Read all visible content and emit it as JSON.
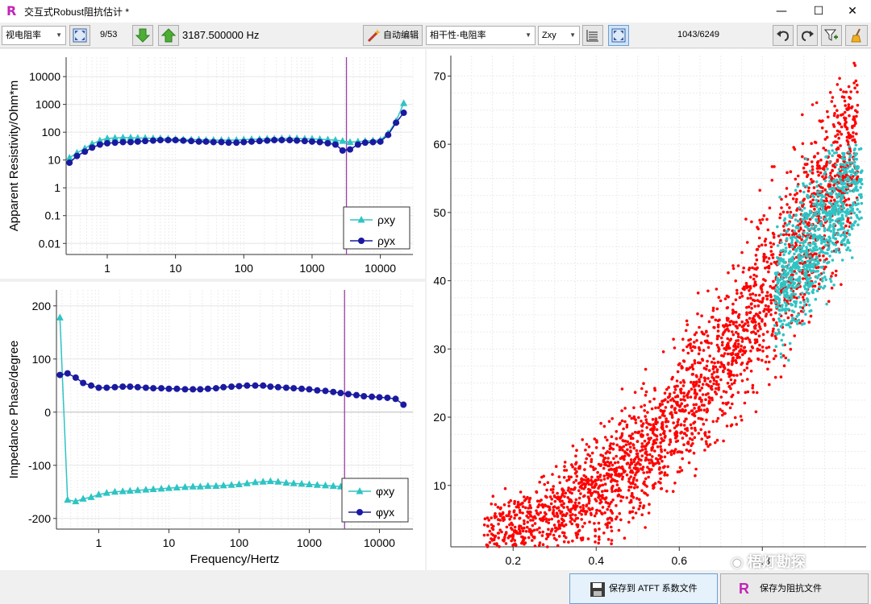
{
  "window": {
    "title": "交互式Robust阻抗估计 *",
    "app_icon": "R",
    "minimize": "—",
    "maximize": "☐",
    "close": "✕"
  },
  "toolbar": {
    "view_combo": "视电阻率",
    "page": "9/53",
    "frequency": "3187.500000 Hz",
    "auto_edit": "自动编辑",
    "coherence_combo": "相干性-电阻率",
    "component_combo": "Zxy",
    "count": "1043/6249"
  },
  "resistivity_plot": {
    "ylabel": "Apparent Resistivity/Ohm*m",
    "yticks": [
      "10000",
      "1000",
      "100",
      "10",
      "1",
      "0.1",
      "0.01"
    ],
    "xticks": [
      "1",
      "10",
      "100",
      "1000",
      "10000"
    ],
    "legend": [
      "ρxy",
      "ρyx"
    ],
    "marker_frequency": 3187.5
  },
  "phase_plot": {
    "ylabel": "Impedance Phase/degree",
    "xlabel": "Frequency/Hertz",
    "yticks": [
      "200",
      "100",
      "0",
      "-100",
      "-200"
    ],
    "xticks": [
      "1",
      "10",
      "100",
      "1000",
      "10000"
    ],
    "legend": [
      "φxy",
      "φyx"
    ],
    "marker_frequency": 3187.5
  },
  "scatter_plot": {
    "xticks": [
      "0.2",
      "0.4",
      "0.6",
      "0.8"
    ],
    "yticks": [
      "70",
      "60",
      "50",
      "40",
      "30",
      "20",
      "10"
    ]
  },
  "footer": {
    "save_atft": "保存到 ATFT 系数文件",
    "save_impedance": "保存为阻抗文件",
    "watermark": "梧灯勘探"
  },
  "colors": {
    "xy": "#2ec4c4",
    "yx": "#1a1aa0",
    "scatter_red": "#ff0000",
    "scatter_cyan": "#2ec4c4",
    "marker_line": "#9b3fa8"
  },
  "chart_data": [
    {
      "type": "line",
      "title": "",
      "ylabel": "Apparent Resistivity/Ohm*m",
      "xscale": "log",
      "yscale": "log",
      "xlim": [
        0.25,
        30000
      ],
      "ylim": [
        0.004,
        50000
      ],
      "grid": true,
      "legend": "bottom-right",
      "series": [
        {
          "name": "ρxy",
          "marker": "triangle",
          "x": [
            0.28,
            0.36,
            0.47,
            0.6,
            0.78,
            1.0,
            1.3,
            1.7,
            2.2,
            2.8,
            3.6,
            4.7,
            6,
            7.8,
            10,
            13,
            17,
            22,
            28,
            36,
            47,
            60,
            78,
            100,
            130,
            170,
            220,
            280,
            360,
            470,
            600,
            780,
            1000,
            1300,
            1700,
            2200,
            2800,
            3600,
            4700,
            6000,
            7800,
            10000,
            13000,
            17000,
            22000
          ],
          "y": [
            12,
            18,
            26,
            38,
            50,
            60,
            62,
            64,
            64,
            62,
            62,
            60,
            60,
            58,
            56,
            54,
            54,
            54,
            52,
            52,
            52,
            52,
            52,
            54,
            56,
            56,
            58,
            58,
            60,
            60,
            60,
            58,
            58,
            56,
            54,
            52,
            48,
            44,
            46,
            48,
            50,
            52,
            90,
            250,
            1100
          ]
        },
        {
          "name": "ρyx",
          "marker": "circle",
          "x": [
            0.28,
            0.36,
            0.47,
            0.6,
            0.78,
            1.0,
            1.3,
            1.7,
            2.2,
            2.8,
            3.6,
            4.7,
            6,
            7.8,
            10,
            13,
            17,
            22,
            28,
            36,
            47,
            60,
            78,
            100,
            130,
            170,
            220,
            280,
            360,
            470,
            600,
            780,
            1000,
            1300,
            1700,
            2200,
            2800,
            3600,
            4700,
            6000,
            7800,
            10000,
            13000,
            17000,
            22000
          ],
          "y": [
            8,
            14,
            20,
            28,
            36,
            40,
            42,
            44,
            44,
            46,
            48,
            50,
            52,
            52,
            52,
            50,
            48,
            46,
            46,
            44,
            44,
            42,
            42,
            44,
            46,
            48,
            50,
            52,
            52,
            52,
            50,
            48,
            46,
            44,
            40,
            36,
            22,
            24,
            36,
            42,
            44,
            46,
            80,
            220,
            500
          ]
        }
      ]
    },
    {
      "type": "line",
      "title": "",
      "xlabel": "Frequency/Hertz",
      "ylabel": "Impedance Phase/degree",
      "xscale": "log",
      "xlim": [
        0.25,
        30000
      ],
      "ylim": [
        -220,
        230
      ],
      "grid": true,
      "legend": "bottom-right",
      "series": [
        {
          "name": "φxy",
          "marker": "triangle",
          "x": [
            0.28,
            0.36,
            0.47,
            0.6,
            0.78,
            1.0,
            1.3,
            1.7,
            2.2,
            2.8,
            3.6,
            4.7,
            6,
            7.8,
            10,
            13,
            17,
            22,
            28,
            36,
            47,
            60,
            78,
            100,
            130,
            170,
            220,
            280,
            360,
            470,
            600,
            780,
            1000,
            1300,
            1700,
            2200,
            2800,
            3600,
            4700,
            6000,
            7800,
            10000,
            13000,
            17000,
            22000
          ],
          "y": [
            178,
            -165,
            -168,
            -163,
            -160,
            -155,
            -152,
            -150,
            -149,
            -148,
            -147,
            -146,
            -145,
            -144,
            -143,
            -142,
            -141,
            -140,
            -140,
            -139,
            -139,
            -138,
            -137,
            -136,
            -134,
            -132,
            -131,
            -130,
            -131,
            -133,
            -134,
            -135,
            -136,
            -137,
            -138,
            -139,
            -140,
            -141,
            -142,
            -143,
            -143,
            -144,
            -146,
            -150,
            -158
          ]
        },
        {
          "name": "φyx",
          "marker": "circle",
          "x": [
            0.28,
            0.36,
            0.47,
            0.6,
            0.78,
            1.0,
            1.3,
            1.7,
            2.2,
            2.8,
            3.6,
            4.7,
            6,
            7.8,
            10,
            13,
            17,
            22,
            28,
            36,
            47,
            60,
            78,
            100,
            130,
            170,
            220,
            280,
            360,
            470,
            600,
            780,
            1000,
            1300,
            1700,
            2200,
            2800,
            3600,
            4700,
            6000,
            7800,
            10000,
            13000,
            17000,
            22000
          ],
          "y": [
            70,
            73,
            65,
            55,
            50,
            46,
            46,
            47,
            48,
            48,
            47,
            46,
            45,
            45,
            44,
            44,
            43,
            43,
            43,
            44,
            45,
            47,
            48,
            49,
            50,
            50,
            50,
            48,
            47,
            46,
            45,
            44,
            43,
            41,
            40,
            38,
            36,
            34,
            32,
            30,
            29,
            28,
            27,
            25,
            14
          ]
        }
      ]
    },
    {
      "type": "scatter",
      "title": "",
      "xlim": [
        0.05,
        1.05
      ],
      "ylim": [
        1,
        73
      ],
      "grid": true,
      "series": [
        {
          "name": "",
          "color": "red",
          "points": 5206,
          "x_range": [
            0.13,
            1.03
          ],
          "y_range": [
            1,
            72
          ]
        },
        {
          "name": "",
          "color": "cyan",
          "points": 1043,
          "x_range": [
            0.83,
            1.04
          ],
          "y_range": [
            28,
            60
          ]
        }
      ]
    }
  ]
}
